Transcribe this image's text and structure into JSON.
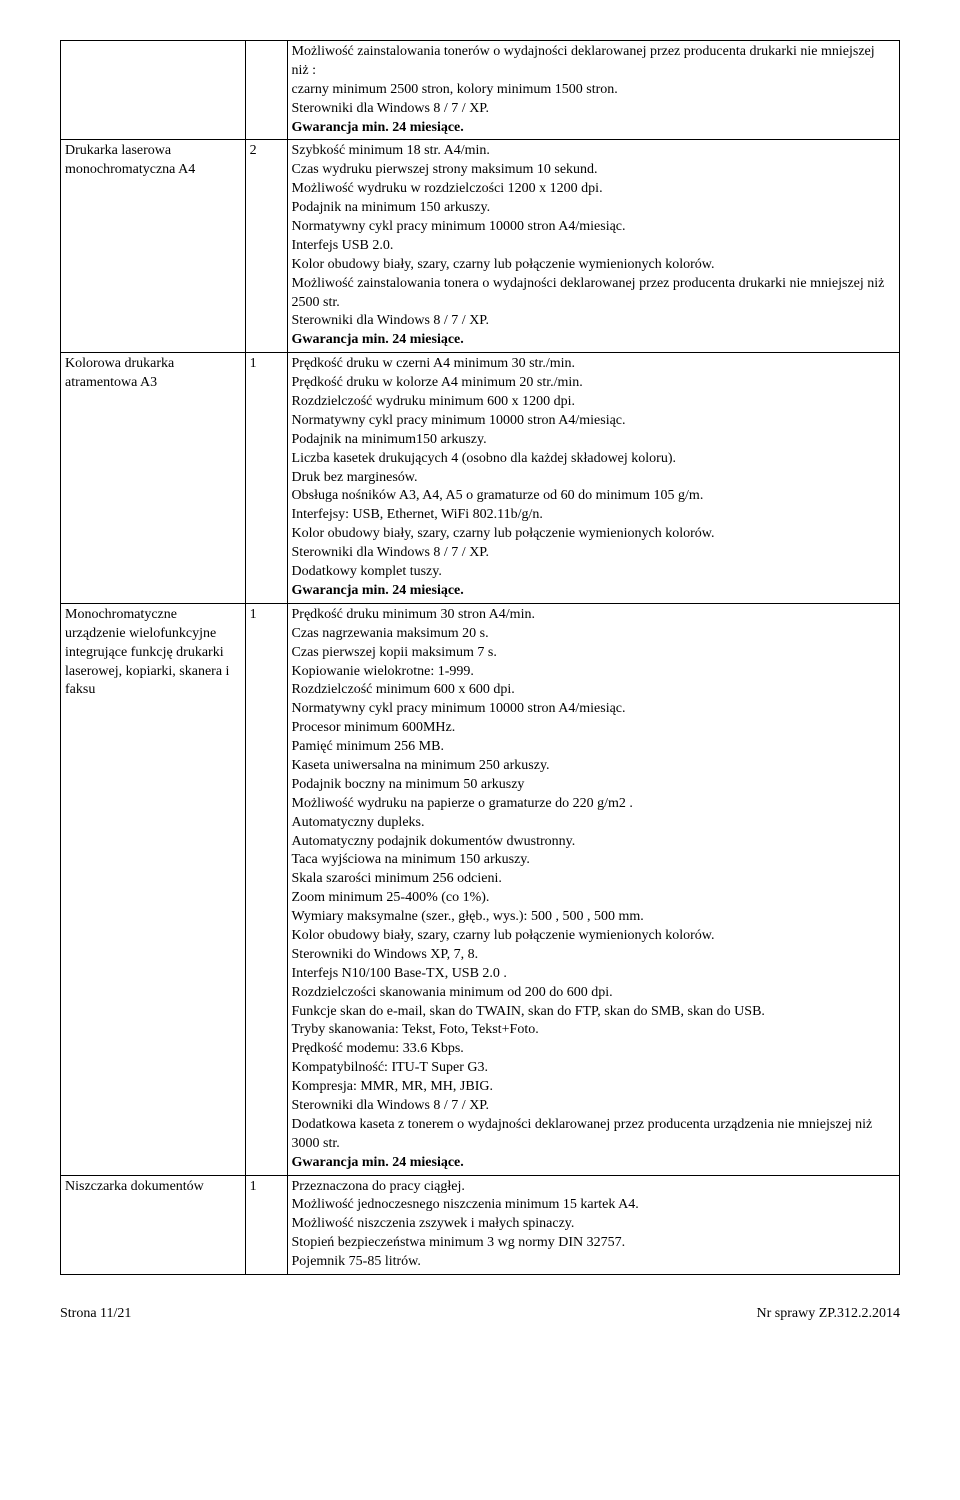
{
  "rows": [
    {
      "col1": "",
      "col2": "",
      "lines": [
        {
          "text": "Możliwość zainstalowania tonerów o wydajności deklarowanej przez producenta drukarki nie mniejszej niż :"
        },
        {
          "text": "czarny minimum 2500 stron, kolory minimum 1500 stron."
        },
        {
          "text": "Sterowniki dla Windows 8 / 7 / XP."
        },
        {
          "text": "Gwarancja min. 24 miesiące.",
          "bold": true
        }
      ]
    },
    {
      "col1": "Drukarka laserowa monochromatyczna A4",
      "col2": "2",
      "lines": [
        {
          "text": "Szybkość minimum 18 str. A4/min."
        },
        {
          "text": "Czas wydruku pierwszej strony maksimum 10 sekund."
        },
        {
          "text": "Możliwość wydruku w rozdzielczości 1200 x 1200 dpi."
        },
        {
          "text": "Podajnik na minimum 150 arkuszy."
        },
        {
          "text": "Normatywny cykl pracy minimum 10000 stron A4/miesiąc."
        },
        {
          "text": "Interfejs USB 2.0."
        },
        {
          "text": "Kolor obudowy biały, szary, czarny lub połączenie wymienionych kolorów."
        },
        {
          "text": "Możliwość zainstalowania tonera o wydajności deklarowanej przez producenta drukarki nie mniejszej niż 2500 str."
        },
        {
          "text": "Sterowniki dla Windows 8 / 7 / XP."
        },
        {
          "text": "Gwarancja min. 24 miesiące.",
          "bold": true
        }
      ]
    },
    {
      "col1": "Kolorowa drukarka atramentowa A3",
      "col2": "1",
      "lines": [
        {
          "text": "Prędkość druku w czerni A4 minimum 30 str./min."
        },
        {
          "text": "Prędkość druku w kolorze A4 minimum 20 str./min."
        },
        {
          "text": "Rozdzielczość wydruku minimum 600 x 1200 dpi."
        },
        {
          "text": "Normatywny cykl pracy minimum 10000 stron A4/miesiąc."
        },
        {
          "text": "Podajnik na minimum150 arkuszy."
        },
        {
          "text": "Liczba kasetek drukujących 4 (osobno dla każdej składowej koloru)."
        },
        {
          "text": "Druk bez marginesów."
        },
        {
          "text": "Obsługa nośników A3, A4, A5 o gramaturze od 60 do minimum 105 g/m."
        },
        {
          "text": "Interfejsy: USB, Ethernet, WiFi 802.11b/g/n."
        },
        {
          "text": "Kolor obudowy biały, szary, czarny lub połączenie wymienionych kolorów."
        },
        {
          "text": "Sterowniki dla Windows 8 / 7 / XP."
        },
        {
          "text": "Dodatkowy komplet tuszy."
        },
        {
          "text": "Gwarancja min. 24 miesiące.",
          "bold": true
        }
      ]
    },
    {
      "col1": "Monochromatyczne urządzenie wielofunkcyjne integrujące funkcję drukarki laserowej, kopiarki, skanera i faksu",
      "col2": "1",
      "lines": [
        {
          "text": "Prędkość druku minimum 30 stron A4/min."
        },
        {
          "text": "Czas nagrzewania maksimum 20 s."
        },
        {
          "text": "Czas pierwszej kopii maksimum 7 s."
        },
        {
          "text": "Kopiowanie wielokrotne: 1-999."
        },
        {
          "text": "Rozdzielczość minimum 600 x 600 dpi."
        },
        {
          "text": "Normatywny cykl pracy minimum 10000 stron A4/miesiąc."
        },
        {
          "text": "Procesor minimum 600MHz."
        },
        {
          "text": "Pamięć minimum 256 MB."
        },
        {
          "text": "Kaseta uniwersalna na minimum 250 arkuszy."
        },
        {
          "text": "Podajnik boczny na minimum 50 arkuszy"
        },
        {
          "text": "Możliwość wydruku na papierze o gramaturze do 220 g/m2 ."
        },
        {
          "text": "Automatyczny dupleks."
        },
        {
          "text": "Automatyczny podajnik dokumentów dwustronny."
        },
        {
          "text": "Taca wyjściowa na minimum 150 arkuszy."
        },
        {
          "text": "Skala szarości minimum 256 odcieni."
        },
        {
          "text": "Zoom minimum 25-400% (co 1%)."
        },
        {
          "text": "Wymiary maksymalne (szer., głęb., wys.): 500 , 500 , 500 mm."
        },
        {
          "text": "Kolor obudowy biały, szary, czarny lub połączenie wymienionych kolorów."
        },
        {
          "text": "Sterowniki do Windows XP, 7, 8."
        },
        {
          "text": "Interfejs N10/100 Base-TX, USB 2.0 ."
        },
        {
          "text": "Rozdzielczości skanowania minimum od 200 do 600 dpi."
        },
        {
          "text": "Funkcje skan do e-mail, skan do TWAIN, skan do FTP, skan do SMB, skan do USB."
        },
        {
          "text": "Tryby skanowania: Tekst, Foto, Tekst+Foto."
        },
        {
          "text": "Prędkość modemu: 33.6 Kbps."
        },
        {
          "text": "Kompatybilność: ITU-T Super G3."
        },
        {
          "text": "Kompresja: MMR, MR, MH, JBIG."
        },
        {
          "text": "Sterowniki dla Windows 8 / 7 / XP."
        },
        {
          "text": "Dodatkowa kaseta z tonerem o wydajności deklarowanej przez producenta urządzenia nie mniejszej niż 3000 str."
        },
        {
          "text": "Gwarancja min. 24 miesiące.",
          "bold": true
        }
      ]
    },
    {
      "col1": "Niszczarka dokumentów",
      "col2": "1",
      "lines": [
        {
          "text": "Przeznaczona do pracy ciągłej."
        },
        {
          "text": "Możliwość jednoczesnego niszczenia minimum 15 kartek A4."
        },
        {
          "text": "Możliwość niszczenia zszywek i małych spinaczy."
        },
        {
          "text": "Stopień bezpieczeństwa minimum 3 wg normy DIN 32757."
        },
        {
          "text": "Pojemnik 75-85 litrów."
        }
      ]
    }
  ],
  "footer": {
    "left": "Strona 11/21",
    "right": "Nr sprawy ZP.312.2.2014"
  }
}
